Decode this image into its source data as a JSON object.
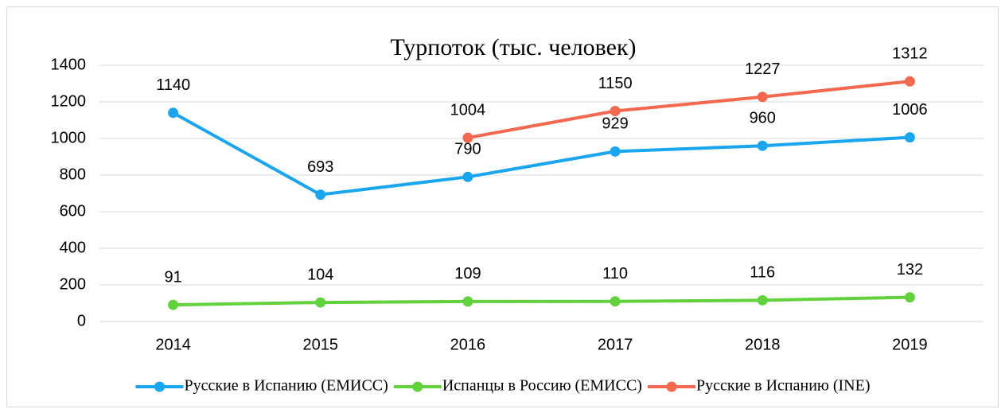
{
  "chart_data": {
    "type": "line",
    "title": "Турпоток (тыс. человек)",
    "categories": [
      "2014",
      "2015",
      "2016",
      "2017",
      "2018",
      "2019"
    ],
    "series": [
      {
        "name": "Русские в Испанию (ЕМИСС)",
        "color": "#19a6ee",
        "values": [
          1140,
          693,
          790,
          929,
          960,
          1006
        ]
      },
      {
        "name": "Испанцы в Россию (ЕМИСС)",
        "color": "#61d23c",
        "values": [
          91,
          104,
          109,
          110,
          116,
          132
        ]
      },
      {
        "name": "Русские в Испанию (INE)",
        "color": "#f4684f",
        "values": [
          null,
          null,
          1004,
          1150,
          1227,
          1312
        ]
      }
    ],
    "ylim": [
      0,
      1400
    ],
    "yticks": [
      0,
      200,
      400,
      600,
      800,
      1000,
      1200,
      1400
    ],
    "grid": true,
    "legend": "bottom"
  }
}
